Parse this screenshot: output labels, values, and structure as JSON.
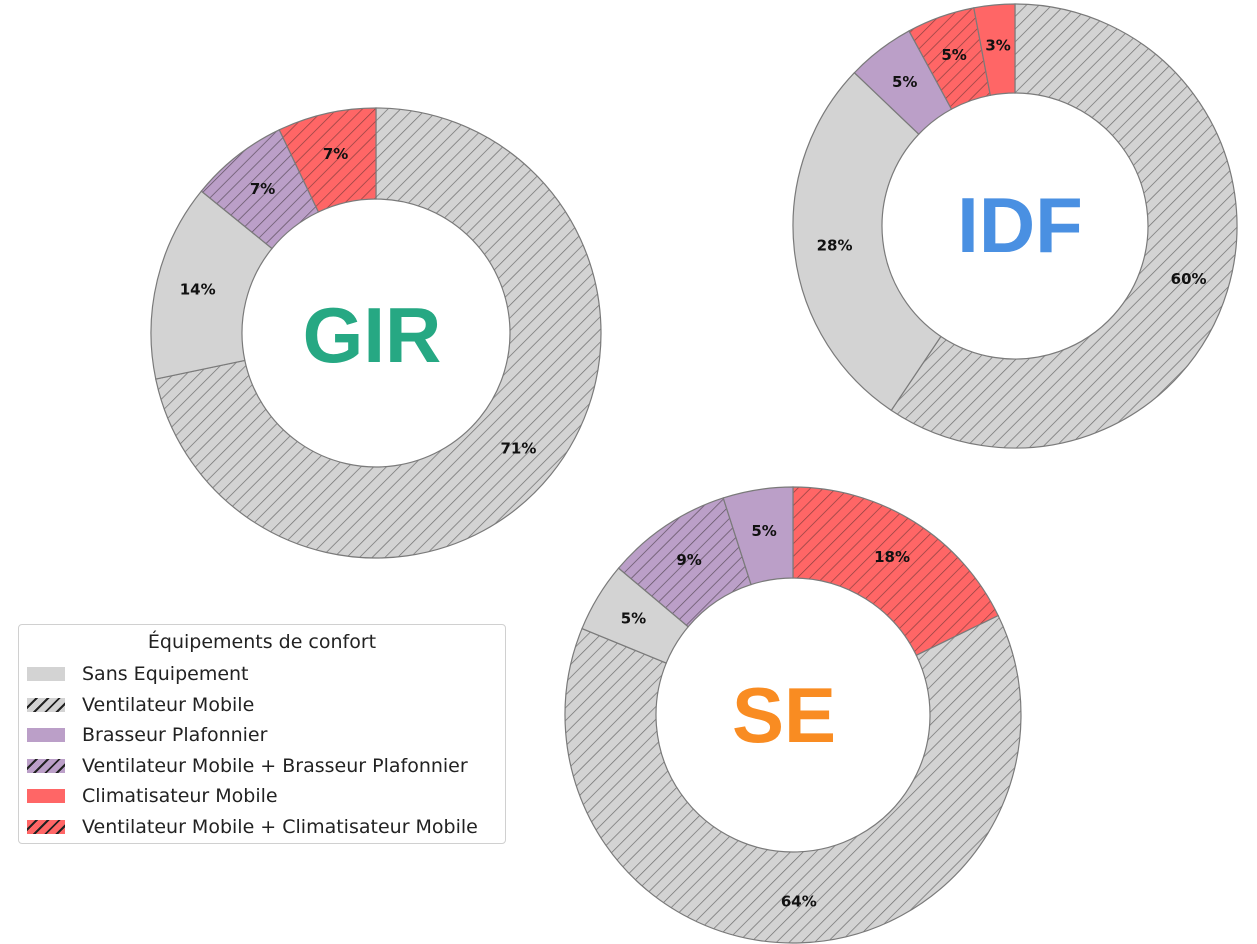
{
  "chart_data": [
    {
      "type": "pie",
      "variant": "donut",
      "title": "GIR",
      "title_color": "#26a883",
      "slices_clockwise_from_top": [
        {
          "category": "Ventilateur Mobile",
          "value": 71,
          "label": "71%"
        },
        {
          "category": "Sans Equipement",
          "value": 14,
          "label": "14%"
        },
        {
          "category": "Ventilateur Mobile + Brasseur Plafonnier",
          "value": 7,
          "label": "7%"
        },
        {
          "category": "Ventilateur Mobile + Climatisateur Mobile",
          "value": 7,
          "label": "7%"
        }
      ]
    },
    {
      "type": "pie",
      "variant": "donut",
      "title": "IDF",
      "title_color": "#4a90e2",
      "slices_clockwise_from_top": [
        {
          "category": "Ventilateur Mobile",
          "value": 60,
          "label": "60%"
        },
        {
          "category": "Sans Equipement",
          "value": 28,
          "label": "28%"
        },
        {
          "category": "Brasseur Plafonnier",
          "value": 5,
          "label": "5%"
        },
        {
          "category": "Ventilateur Mobile + Climatisateur Mobile",
          "value": 5,
          "label": "5%"
        },
        {
          "category": "Climatisateur Mobile",
          "value": 3,
          "label": "3%"
        }
      ]
    },
    {
      "type": "pie",
      "variant": "donut",
      "title": "SE",
      "title_color": "#f98c22",
      "slices_clockwise_from_top": [
        {
          "category": "Ventilateur Mobile + Climatisateur Mobile",
          "value": 18,
          "label": "18%"
        },
        {
          "category": "Ventilateur Mobile",
          "value": 64,
          "label": "64%"
        },
        {
          "category": "Sans Equipement",
          "value": 5,
          "label": "5%"
        },
        {
          "category": "Ventilateur Mobile + Brasseur Plafonnier",
          "value": 9,
          "label": "9%"
        },
        {
          "category": "Brasseur Plafonnier",
          "value": 5,
          "label": "5%"
        }
      ]
    }
  ],
  "legend": {
    "title": "Équipements de confort",
    "position": "lower left",
    "items": [
      {
        "label": "Sans Equipement",
        "color": "#d3d3d3",
        "hatched": false
      },
      {
        "label": "Ventilateur Mobile",
        "color": "#d3d3d3",
        "hatched": true
      },
      {
        "label": "Brasseur Plafonnier",
        "color": "#bb9fc8",
        "hatched": false
      },
      {
        "label": "Ventilateur Mobile + Brasseur Plafonnier",
        "color": "#bb9fc8",
        "hatched": true
      },
      {
        "label": "Climatisateur Mobile",
        "color": "#ff6666",
        "hatched": false
      },
      {
        "label": "Ventilateur Mobile + Climatisateur Mobile",
        "color": "#ff6666",
        "hatched": true
      }
    ]
  },
  "colors": {
    "edge": "#7a7a7a",
    "hatch_line": "#555555"
  }
}
